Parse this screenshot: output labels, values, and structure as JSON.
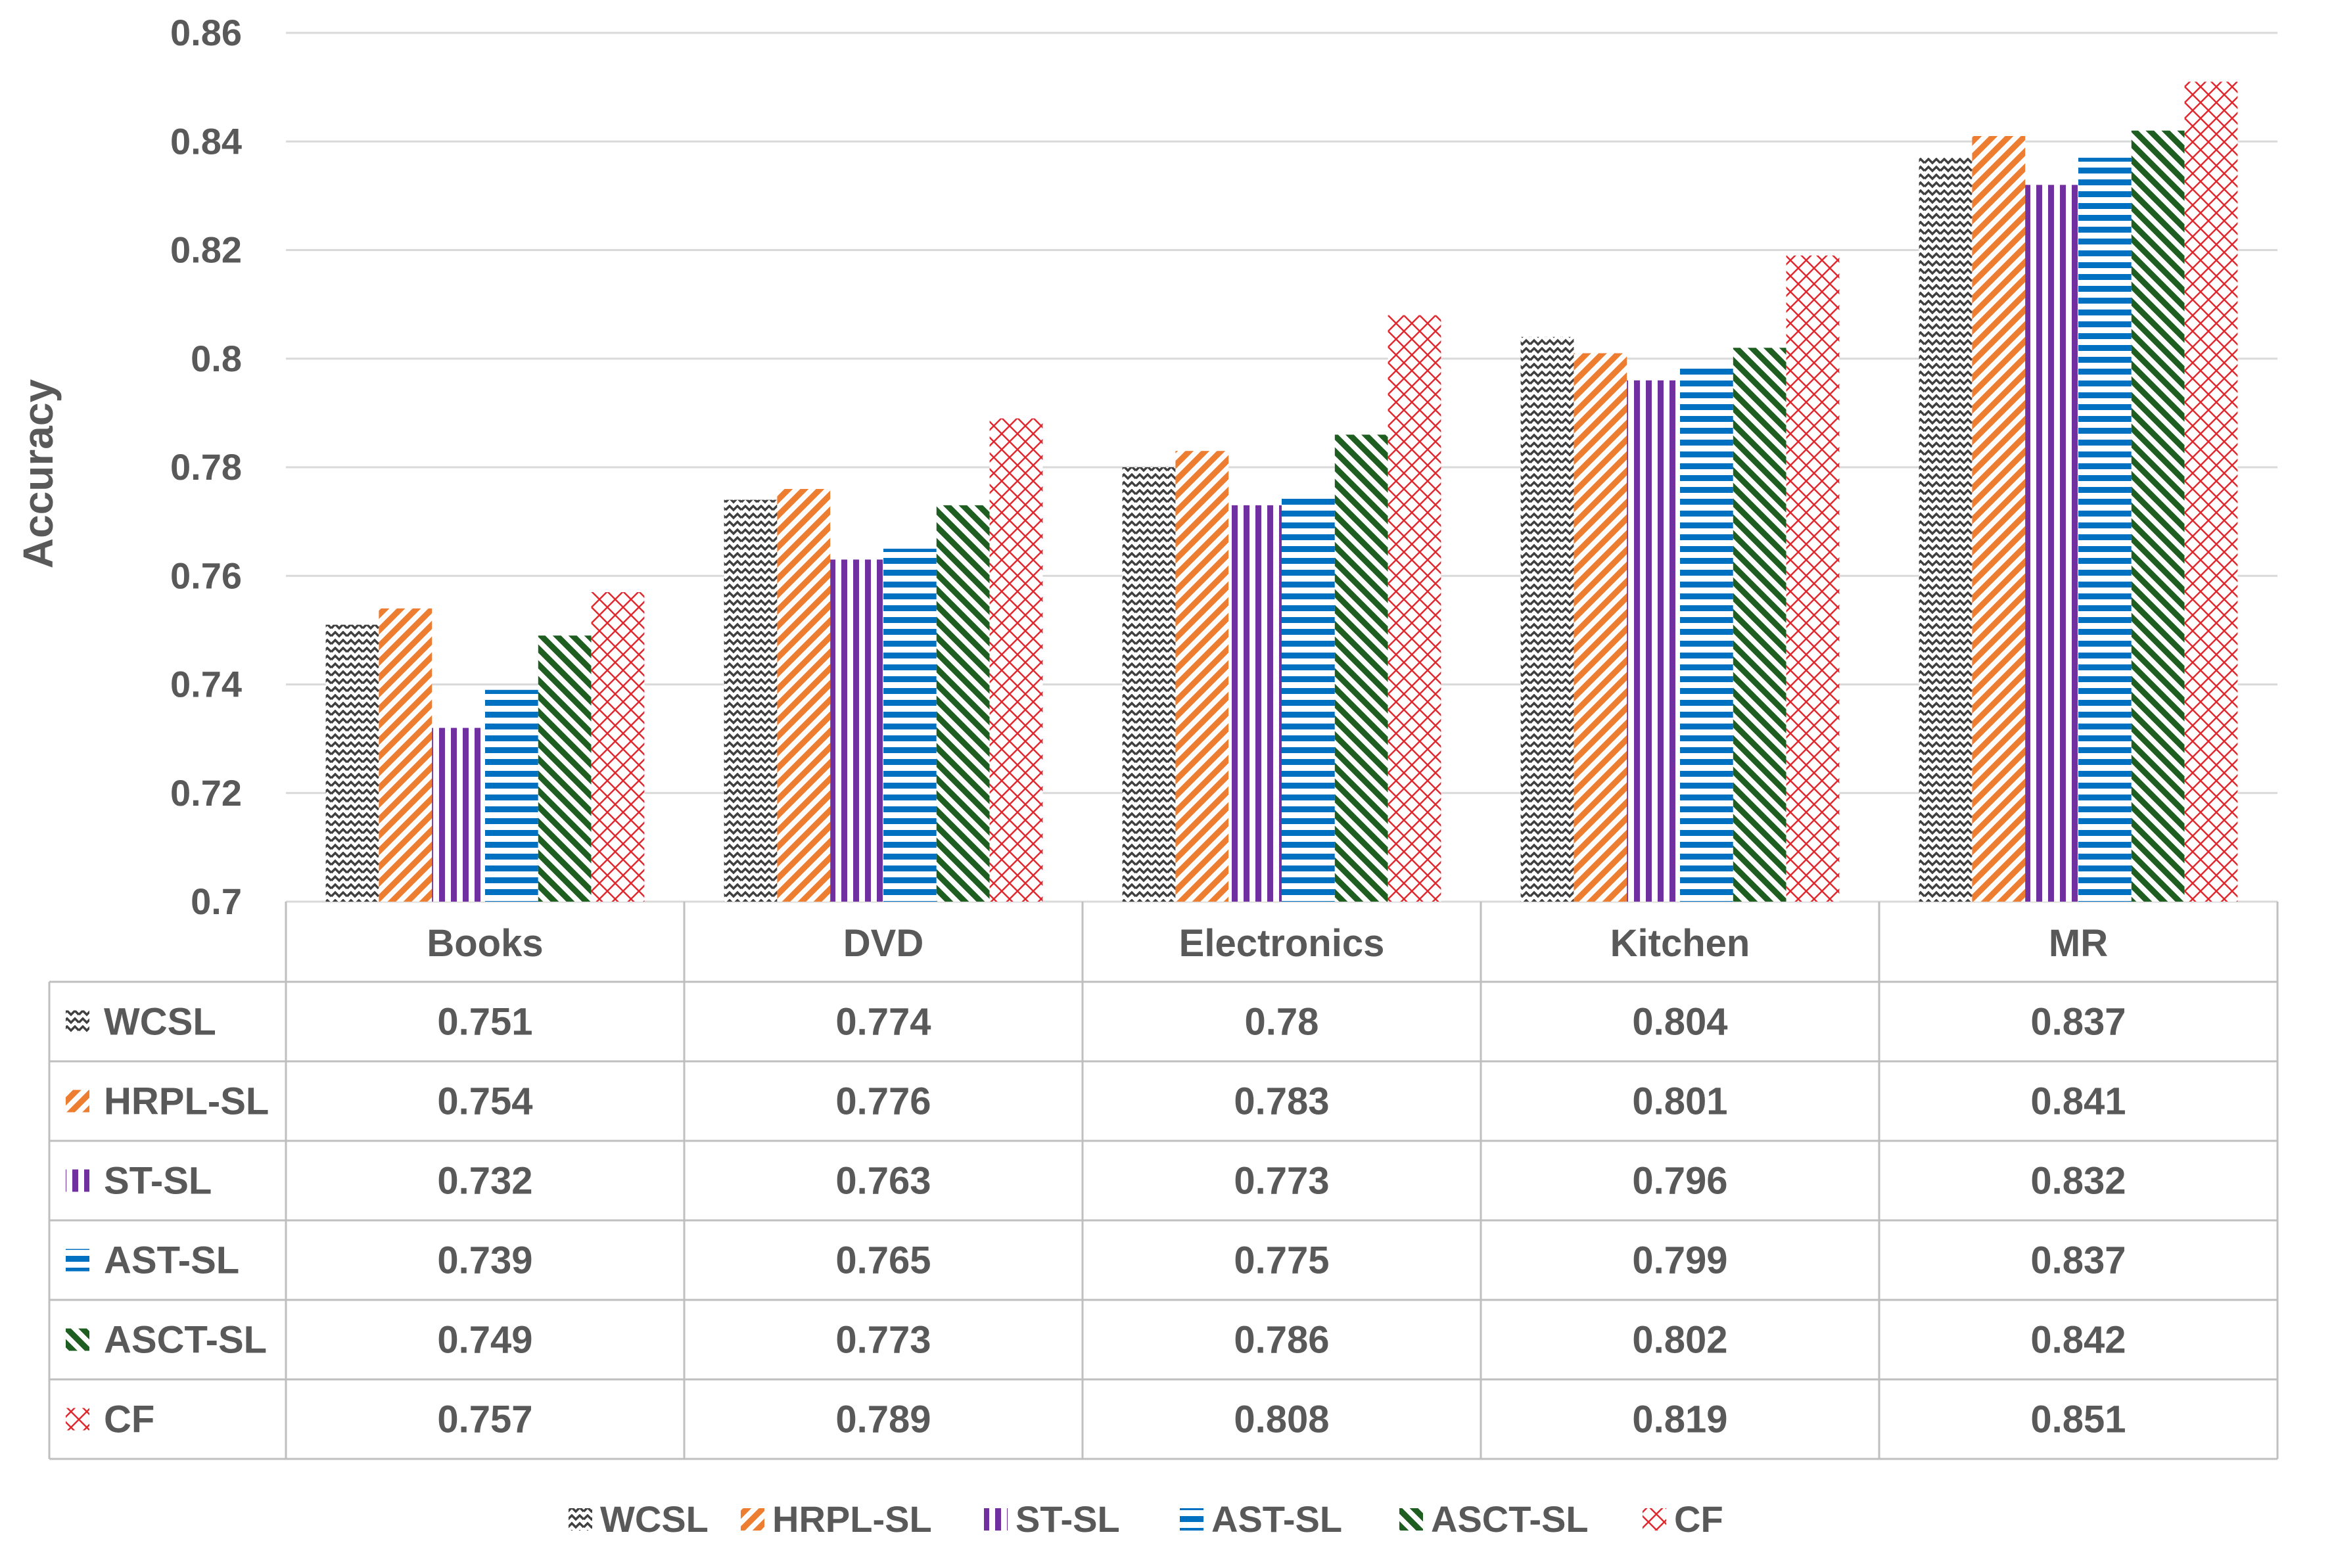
{
  "chart_data": {
    "type": "bar",
    "title": "",
    "xlabel": "",
    "ylabel": "Accuracy",
    "ylim": [
      0.7,
      0.86
    ],
    "yticks": [
      "0.7",
      "0.72",
      "0.74",
      "0.76",
      "0.78",
      "0.8",
      "0.82",
      "0.84",
      "0.86"
    ],
    "grid": true,
    "legend_position": "bottom",
    "data_table": true,
    "categories": [
      "Books",
      "DVD",
      "Electronics",
      "Kitchen",
      "MR"
    ],
    "series": [
      {
        "name": "WCSL",
        "pattern": "zigzag",
        "color": "#404040",
        "values": [
          0.751,
          0.774,
          0.78,
          0.804,
          0.837
        ],
        "labels": [
          "0.751",
          "0.774",
          "0.78",
          "0.804",
          "0.837"
        ]
      },
      {
        "name": "HRPL-SL",
        "pattern": "diagonal-wide",
        "color": "#ED7D31",
        "values": [
          0.754,
          0.776,
          0.783,
          0.801,
          0.841
        ],
        "labels": [
          "0.754",
          "0.776",
          "0.783",
          "0.801",
          "0.841"
        ]
      },
      {
        "name": "ST-SL",
        "pattern": "vertical",
        "color": "#7030A0",
        "values": [
          0.732,
          0.763,
          0.773,
          0.796,
          0.832
        ],
        "labels": [
          "0.732",
          "0.763",
          "0.773",
          "0.796",
          "0.832"
        ]
      },
      {
        "name": "AST-SL",
        "pattern": "horizontal",
        "color": "#0070C0",
        "values": [
          0.739,
          0.765,
          0.775,
          0.799,
          0.837
        ],
        "labels": [
          "0.739",
          "0.765",
          "0.775",
          "0.799",
          "0.837"
        ]
      },
      {
        "name": "ASCT-SL",
        "pattern": "diagonal-down",
        "color": "#1E5E20",
        "values": [
          0.749,
          0.773,
          0.786,
          0.802,
          0.842
        ],
        "labels": [
          "0.749",
          "0.773",
          "0.786",
          "0.802",
          "0.842"
        ]
      },
      {
        "name": "CF",
        "pattern": "cross",
        "color": "#E0292E",
        "values": [
          0.757,
          0.789,
          0.808,
          0.819,
          0.851
        ],
        "labels": [
          "0.757",
          "0.789",
          "0.808",
          "0.819",
          "0.851"
        ]
      }
    ]
  }
}
